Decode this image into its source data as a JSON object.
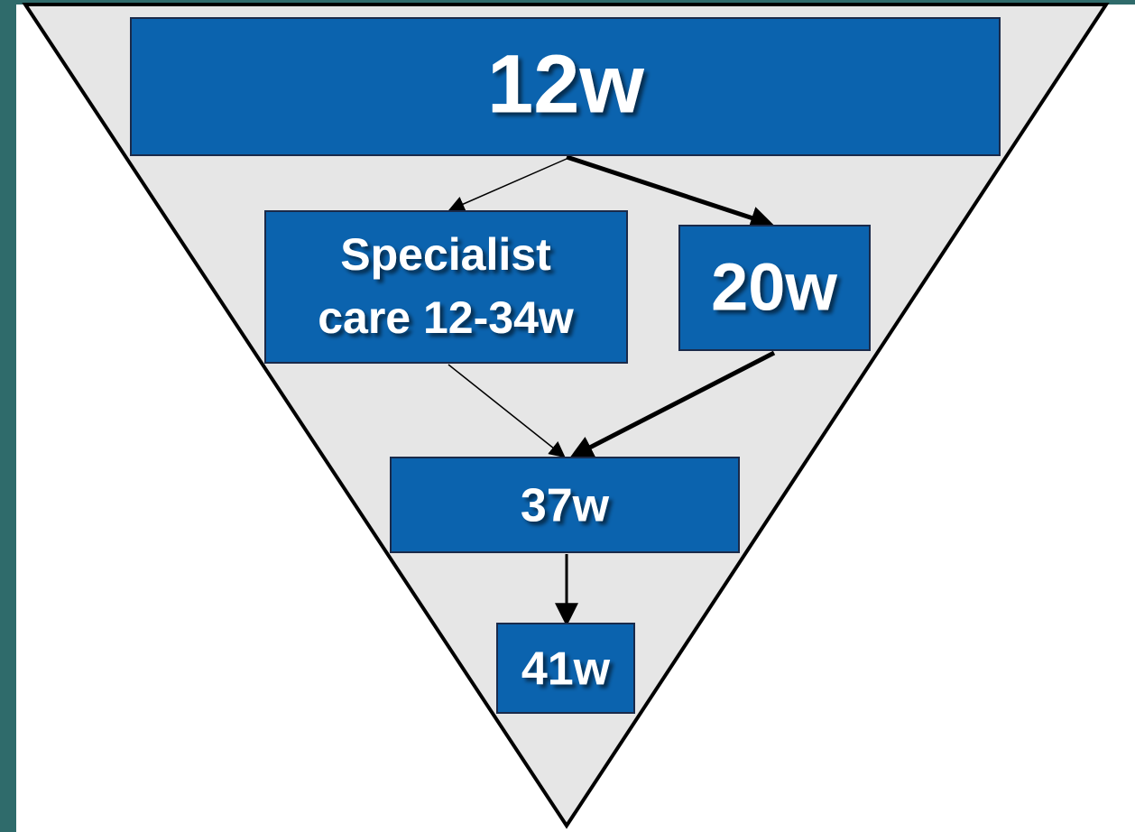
{
  "nodes": [
    {
      "lines": [
        "12w"
      ]
    },
    {
      "lines": [
        "Specialist",
        "care 12-34w"
      ]
    },
    {
      "lines": [
        "20w"
      ]
    },
    {
      "lines": [
        "37w"
      ]
    },
    {
      "lines": [
        "41w"
      ]
    }
  ]
}
